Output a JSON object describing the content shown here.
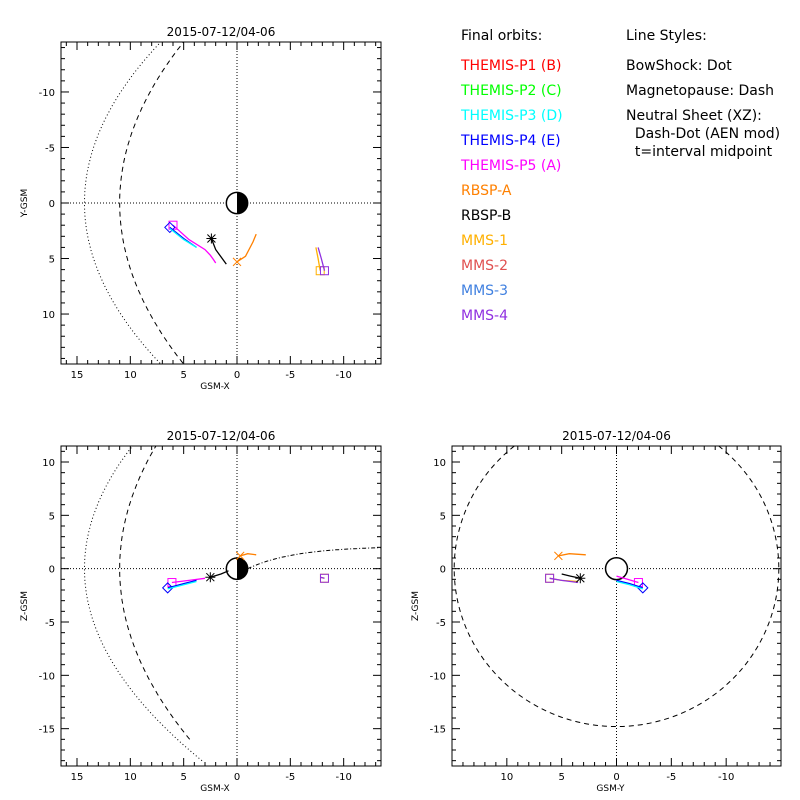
{
  "legend": {
    "header": "Final orbits:",
    "items": [
      {
        "label": "THEMIS-P1 (B)",
        "color": "#ff0000"
      },
      {
        "label": "THEMIS-P2 (C)",
        "color": "#00ff00"
      },
      {
        "label": "THEMIS-P3 (D)",
        "color": "#00ffff"
      },
      {
        "label": "THEMIS-P4 (E)",
        "color": "#0000ff"
      },
      {
        "label": "THEMIS-P5 (A)",
        "color": "#ff00ff"
      },
      {
        "label": "RBSP-A",
        "color": "#ff8000"
      },
      {
        "label": "RBSP-B",
        "color": "#000000"
      },
      {
        "label": "MMS-1",
        "color": "#ffb000"
      },
      {
        "label": "MMS-2",
        "color": "#e05050"
      },
      {
        "label": "MMS-3",
        "color": "#4080e0"
      },
      {
        "label": "MMS-4",
        "color": "#9030e0"
      }
    ]
  },
  "line_styles": {
    "header": "Line Styles:",
    "lines": [
      "BowShock: Dot",
      "Magnetopause: Dash",
      "Neutral Sheet (XZ):",
      "  Dash-Dot (AEN mod)",
      "  t=interval midpoint"
    ]
  },
  "chart_data": [
    {
      "type": "line",
      "id": "xy",
      "title": "2015-07-12/04-06",
      "xlabel": "GSM-X",
      "ylabel": "Y-GSM",
      "xlim": [
        16.5,
        -13.5
      ],
      "ylim": [
        -14.5,
        14.5
      ],
      "xticks": [
        15,
        10,
        5,
        0,
        -5,
        -10
      ],
      "yticks": [
        -10,
        -5,
        0,
        5,
        10
      ],
      "grid": false,
      "series": [
        {
          "label": "THEMIS-P5 (A)",
          "color": "#ff00ff",
          "points": [
            [
              6.0,
              2.0
            ],
            [
              4.5,
              3.3
            ],
            [
              3.0,
              4.2
            ],
            [
              2.5,
              4.7
            ],
            [
              2.2,
              5.1
            ],
            [
              2.0,
              5.4
            ]
          ],
          "marker": "square",
          "marker_at": "start"
        },
        {
          "label": "THEMIS-P4 (E)",
          "color": "#0000ff",
          "points": [
            [
              6.3,
              2.2
            ],
            [
              5.0,
              3.2
            ],
            [
              3.8,
              4.0
            ]
          ],
          "marker": "diamond",
          "marker_at": "start"
        },
        {
          "label": "THEMIS-P3 (D)",
          "color": "#00ffff",
          "points": [
            [
              6.3,
              2.3
            ],
            [
              5.0,
              3.3
            ],
            [
              3.8,
              4.0
            ]
          ]
        },
        {
          "label": "MMS-1",
          "color": "#ffb000",
          "points": [
            [
              -7.8,
              6.1
            ],
            [
              -7.6,
              5.0
            ],
            [
              -7.4,
              4.0
            ]
          ],
          "marker": "square",
          "marker_at": "start"
        },
        {
          "label": "MMS-4",
          "color": "#9030e0",
          "points": [
            [
              -8.2,
              6.1
            ],
            [
              -7.9,
              5.0
            ],
            [
              -7.6,
              4.0
            ]
          ],
          "marker": "square",
          "marker_at": "start"
        },
        {
          "label": "RBSP-A",
          "color": "#ff8000",
          "points": [
            [
              0.0,
              5.3
            ],
            [
              -0.8,
              4.8
            ],
            [
              -1.5,
              3.5
            ],
            [
              -1.8,
              2.8
            ]
          ],
          "marker": "x",
          "marker_at": "start"
        },
        {
          "label": "RBSP-B",
          "color": "#000000",
          "points": [
            [
              2.4,
              3.2
            ],
            [
              2.0,
              4.2
            ],
            [
              1.0,
              5.5
            ]
          ],
          "marker": "star",
          "marker_at": "start"
        }
      ]
    },
    {
      "type": "line",
      "id": "xz",
      "title": "2015-07-12/04-06",
      "xlabel": "GSM-X",
      "ylabel": "Z-GSM",
      "xlim": [
        16.5,
        -13.5
      ],
      "ylim": [
        -18.5,
        11.5
      ],
      "xticks": [
        15,
        10,
        5,
        0,
        -5,
        -10
      ],
      "yticks": [
        10,
        5,
        0,
        -5,
        -10,
        -15
      ],
      "grid": false,
      "series": [
        {
          "label": "THEMIS-P5 (A)",
          "color": "#ff00ff",
          "points": [
            [
              6.1,
              -1.3
            ],
            [
              4.5,
              -1.1
            ],
            [
              3.0,
              -0.9
            ]
          ],
          "marker": "square",
          "marker_at": "start"
        },
        {
          "label": "THEMIS-P4 (E)",
          "color": "#0000ff",
          "points": [
            [
              6.5,
              -1.8
            ],
            [
              5.0,
              -1.4
            ],
            [
              3.8,
              -1.1
            ]
          ],
          "marker": "diamond",
          "marker_at": "start"
        },
        {
          "label": "THEMIS-P3 (D)",
          "color": "#00ffff",
          "points": [
            [
              6.5,
              -1.9
            ],
            [
              5.0,
              -1.5
            ],
            [
              3.8,
              -1.2
            ]
          ]
        },
        {
          "label": "MMS-1",
          "color": "#ffb000",
          "points": [
            [
              -8.2,
              -0.9
            ],
            [
              -7.8,
              -0.8
            ]
          ],
          "marker": "square",
          "marker_at": "start"
        },
        {
          "label": "MMS-4",
          "color": "#9030e0",
          "points": [
            [
              -8.2,
              -0.9
            ],
            [
              -7.8,
              -0.8
            ]
          ],
          "marker": "square",
          "marker_at": "start"
        },
        {
          "label": "RBSP-A",
          "color": "#ff8000",
          "points": [
            [
              -0.3,
              1.2
            ],
            [
              -1.0,
              1.4
            ],
            [
              -1.8,
              1.3
            ]
          ],
          "marker": "x",
          "marker_at": "start"
        },
        {
          "label": "RBSP-B",
          "color": "#000000",
          "points": [
            [
              2.5,
              -0.8
            ],
            [
              1.5,
              -0.5
            ],
            [
              0.8,
              -0.2
            ]
          ],
          "marker": "star",
          "marker_at": "start"
        }
      ]
    },
    {
      "type": "line",
      "id": "yz",
      "title": "2015-07-12/04-06",
      "xlabel": "GSM-Y",
      "ylabel": "Z-GSM",
      "xlim": [
        15.0,
        -15.0
      ],
      "ylim": [
        -18.5,
        11.5
      ],
      "xticks": [
        10,
        5,
        0,
        -5,
        -10
      ],
      "yticks": [
        10,
        5,
        0,
        -5,
        -10,
        -15
      ],
      "grid": false,
      "series": [
        {
          "label": "THEMIS-P5 (A)",
          "color": "#ff00ff",
          "points": [
            [
              -2.0,
              -1.3
            ],
            [
              -1.0,
              -1.0
            ],
            [
              0.0,
              -0.7
            ]
          ],
          "marker": "square",
          "marker_at": "start"
        },
        {
          "label": "THEMIS-P4 (E)",
          "color": "#0000ff",
          "points": [
            [
              -2.4,
              -1.8
            ],
            [
              -1.2,
              -1.4
            ],
            [
              0.0,
              -1.1
            ]
          ],
          "marker": "diamond",
          "marker_at": "start"
        },
        {
          "label": "THEMIS-P3 (D)",
          "color": "#00ffff",
          "points": [
            [
              -2.4,
              -1.9
            ],
            [
              -1.2,
              -1.5
            ],
            [
              0.0,
              -1.2
            ]
          ]
        },
        {
          "label": "MMS-1",
          "color": "#ffb000",
          "points": [
            [
              6.1,
              -0.9
            ],
            [
              5.0,
              -1.1
            ],
            [
              3.5,
              -1.2
            ]
          ],
          "marker": "square",
          "marker_at": "start"
        },
        {
          "label": "MMS-4",
          "color": "#9030e0",
          "points": [
            [
              6.1,
              -0.9
            ],
            [
              5.0,
              -1.1
            ],
            [
              3.5,
              -1.3
            ]
          ],
          "marker": "square",
          "marker_at": "start"
        },
        {
          "label": "RBSP-A",
          "color": "#ff8000",
          "points": [
            [
              5.3,
              1.2
            ],
            [
              4.3,
              1.4
            ],
            [
              2.8,
              1.3
            ]
          ],
          "marker": "x",
          "marker_at": "start"
        },
        {
          "label": "RBSP-B",
          "color": "#000000",
          "points": [
            [
              3.3,
              -0.9
            ],
            [
              4.2,
              -0.7
            ],
            [
              5.0,
              -0.5
            ]
          ],
          "marker": "star",
          "marker_at": "start"
        }
      ]
    }
  ]
}
